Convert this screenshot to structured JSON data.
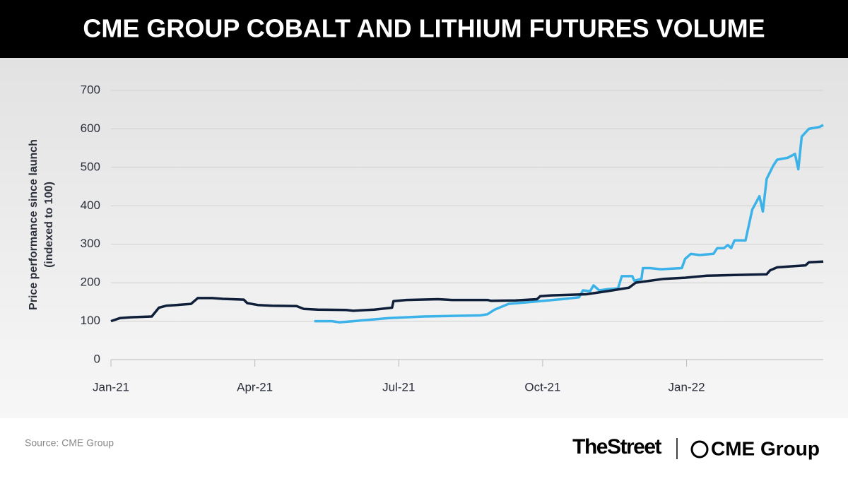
{
  "chart_data": {
    "type": "line",
    "title": "CME GROUP COBALT AND LITHIUM FUTURES VOLUME",
    "ylabel": [
      "Price performance since launch",
      "(indexed to 100)"
    ],
    "xlim": [
      0,
      14.85
    ],
    "xticks": [
      {
        "value": 0,
        "label": "Jan-21"
      },
      {
        "value": 3,
        "label": "Apr-21"
      },
      {
        "value": 6,
        "label": "Jul-21"
      },
      {
        "value": 9,
        "label": "Oct-21"
      },
      {
        "value": 12,
        "label": "Jan-22"
      }
    ],
    "ylim": [
      0,
      700
    ],
    "yticks": [
      0,
      100,
      200,
      300,
      400,
      500,
      600,
      700
    ],
    "grid": true,
    "series": [
      {
        "color": "#0f1f3a",
        "x": [
          0,
          0.19,
          0.41,
          0.85,
          1.0,
          1.15,
          1.37,
          1.67,
          1.81,
          2.11,
          2.33,
          2.77,
          2.84,
          3.06,
          3.36,
          3.87,
          4.02,
          4.31,
          4.9,
          5.05,
          5.49,
          5.86,
          5.89,
          6.16,
          6.82,
          7.11,
          7.85,
          7.92,
          8.44,
          8.88,
          8.95,
          9.18,
          9.91,
          10.35,
          10.8,
          10.94,
          11.53,
          11.97,
          12.42,
          13.0,
          13.67,
          13.74,
          13.89,
          14.48,
          14.55,
          14.85
        ],
        "values": [
          100,
          108,
          110,
          112,
          135,
          140,
          142,
          145,
          160,
          160,
          158,
          156,
          147,
          142,
          140,
          139,
          132,
          130,
          129,
          127,
          130,
          135,
          152,
          155,
          157,
          155,
          155,
          153,
          154,
          157,
          165,
          167,
          170,
          178,
          187,
          200,
          210,
          213,
          218,
          220,
          222,
          232,
          240,
          245,
          253,
          255
        ]
      },
      {
        "color": "#3bb3e8",
        "x": [
          4.24,
          4.61,
          4.76,
          5.05,
          5.35,
          5.79,
          6.52,
          7.7,
          7.85,
          8.0,
          8.29,
          8.59,
          8.95,
          9.47,
          9.76,
          9.84,
          9.99,
          10.06,
          10.18,
          10.35,
          10.57,
          10.65,
          10.87,
          10.91,
          11.06,
          11.09,
          11.24,
          11.46,
          11.9,
          11.97,
          12.09,
          12.27,
          12.56,
          12.64,
          12.78,
          12.86,
          12.93,
          13.0,
          13.23,
          13.37,
          13.52,
          13.59,
          13.67,
          13.81,
          13.89,
          14.11,
          14.26,
          14.33,
          14.4,
          14.55,
          14.77,
          14.85
        ],
        "values": [
          100,
          100,
          97,
          100,
          103,
          108,
          112,
          115,
          118,
          130,
          145,
          148,
          152,
          158,
          162,
          180,
          178,
          193,
          180,
          183,
          185,
          217,
          217,
          205,
          210,
          238,
          238,
          235,
          238,
          262,
          275,
          272,
          275,
          290,
          290,
          298,
          290,
          310,
          310,
          390,
          425,
          385,
          470,
          505,
          520,
          525,
          535,
          495,
          580,
          600,
          605,
          610
        ]
      }
    ]
  },
  "footer": {
    "source": "Source: CME Group",
    "logos": [
      "TheStreet",
      "CME Group"
    ]
  }
}
